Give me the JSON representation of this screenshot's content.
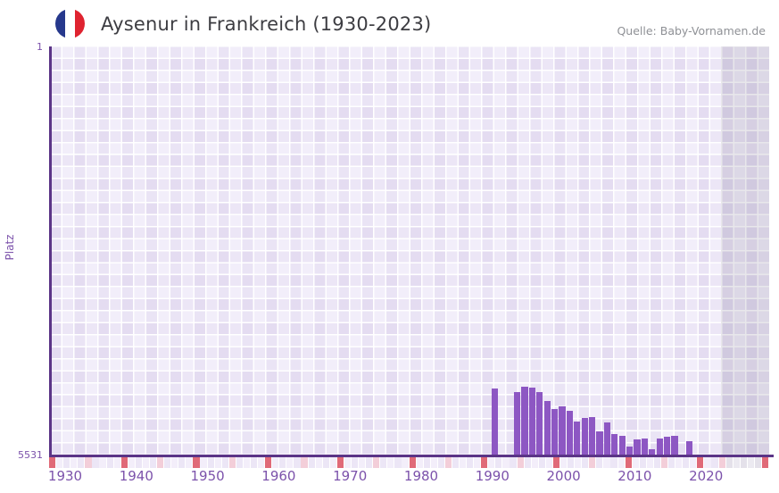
{
  "header": {
    "title": "Aysenur in Frankreich (1930-2023)",
    "source": "Quelle: Baby-Vornamen.de",
    "flag_icon": "france-flag-icon",
    "flag_colors": [
      "#26388c",
      "#ffffff",
      "#df2330"
    ]
  },
  "chart_data": {
    "type": "bar",
    "title": "Aysenur in Frankreich (1930-2023)",
    "ylabel": "Platz",
    "xlabel": "",
    "y_axis_inverted": true,
    "ylim": [
      1,
      5531
    ],
    "y_top_tick": "1",
    "y_bottom_tick": "5531",
    "x_ticks": [
      1930,
      1940,
      1950,
      1960,
      1970,
      1980,
      1990,
      2000,
      2010,
      2020
    ],
    "x_range": [
      1930,
      2029
    ],
    "grid": "checkerboard",
    "legend": "none",
    "bar_color": "#8d57c3",
    "axis_color": "#5b3487",
    "tick_label_color": "#7c52ab",
    "no_data_band_from_year": 2023,
    "points": [
      {
        "year": 1991,
        "rank": 4620
      },
      {
        "year": 1994,
        "rank": 4670
      },
      {
        "year": 1995,
        "rank": 4600
      },
      {
        "year": 1996,
        "rank": 4610
      },
      {
        "year": 1997,
        "rank": 4670
      },
      {
        "year": 1998,
        "rank": 4790
      },
      {
        "year": 1999,
        "rank": 4900
      },
      {
        "year": 2000,
        "rank": 4870
      },
      {
        "year": 2001,
        "rank": 4930
      },
      {
        "year": 2002,
        "rank": 5070
      },
      {
        "year": 2003,
        "rank": 5020
      },
      {
        "year": 2004,
        "rank": 5010
      },
      {
        "year": 2005,
        "rank": 5210
      },
      {
        "year": 2006,
        "rank": 5080
      },
      {
        "year": 2007,
        "rank": 5240
      },
      {
        "year": 2008,
        "rank": 5270
      },
      {
        "year": 2009,
        "rank": 5410
      },
      {
        "year": 2010,
        "rank": 5310
      },
      {
        "year": 2011,
        "rank": 5300
      },
      {
        "year": 2012,
        "rank": 5450
      },
      {
        "year": 2013,
        "rank": 5300
      },
      {
        "year": 2014,
        "rank": 5280
      },
      {
        "year": 2015,
        "rank": 5270
      },
      {
        "year": 2017,
        "rank": 5340
      }
    ],
    "year_strip": {
      "cells": 100,
      "start_year": 1930,
      "base_color_even": "#ece6f6",
      "base_color_odd": "#f3eefa",
      "dark_zone_color_even": "#e4e1ea",
      "dark_zone_color_odd": "#eceaf1",
      "red_color": "#e06a78",
      "pink_color": "#f3ced9",
      "red_cells": [
        0,
        10,
        20,
        30,
        40,
        50,
        60,
        70,
        80,
        90,
        99
      ],
      "pink_cells": [
        5,
        15,
        25,
        35,
        45,
        55,
        65,
        75,
        85,
        93
      ]
    }
  }
}
